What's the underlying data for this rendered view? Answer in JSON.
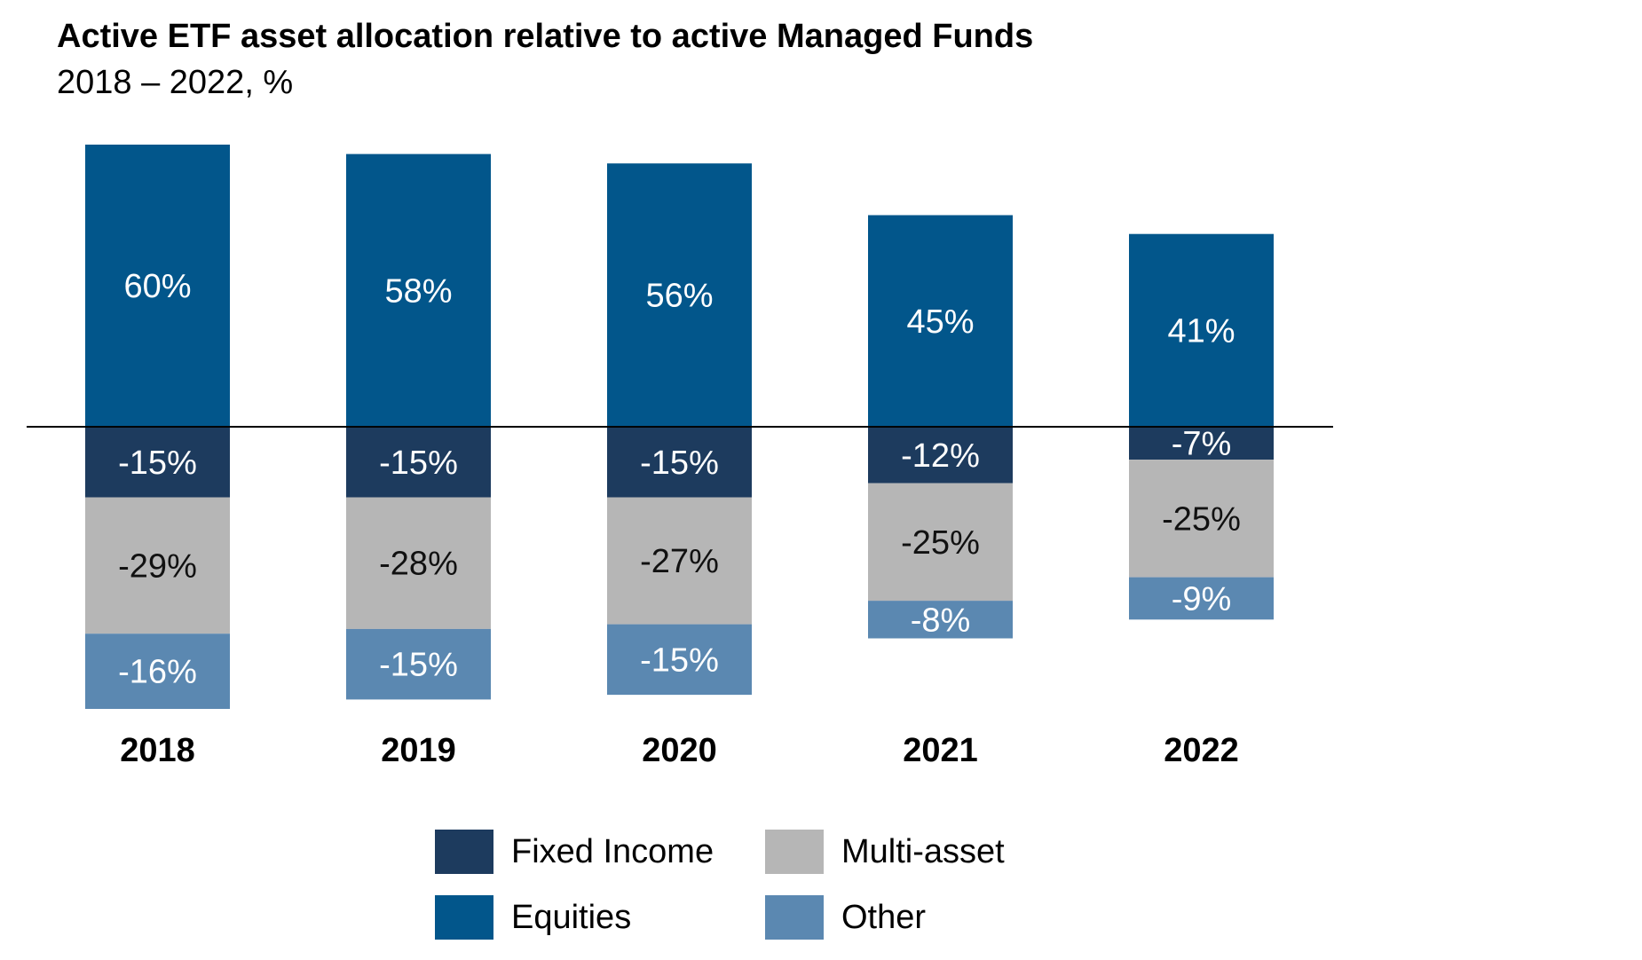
{
  "title": "Active ETF asset allocation relative to active Managed Funds",
  "subtitle": "2018 – 2022, %",
  "colors": {
    "equities": "#02568b",
    "fixed_income": "#1d3b5e",
    "multi_asset": "#b6b6b6",
    "other": "#5b88b1",
    "zero_line": "#000000"
  },
  "legend": [
    {
      "key": "fixed_income",
      "label": "Fixed Income",
      "color": "#1d3b5e"
    },
    {
      "key": "multi_asset",
      "label": "Multi-asset",
      "color": "#b6b6b6"
    },
    {
      "key": "equities",
      "label": "Equities",
      "color": "#02568b"
    },
    {
      "key": "other",
      "label": "Other",
      "color": "#5b88b1"
    }
  ],
  "chart_data": {
    "type": "bar",
    "stacked": true,
    "title": "Active ETF asset allocation relative to active Managed Funds",
    "subtitle": "2018 – 2022, %",
    "categories": [
      "2018",
      "2019",
      "2020",
      "2021",
      "2022"
    ],
    "series": [
      {
        "name": "Equities",
        "key": "equities",
        "values": [
          60,
          58,
          56,
          45,
          41
        ],
        "labels": [
          "60%",
          "58%",
          "56%",
          "45%",
          "41%"
        ]
      },
      {
        "name": "Fixed Income",
        "key": "fixed_income",
        "values": [
          -15,
          -15,
          -15,
          -12,
          -7
        ],
        "labels": [
          "-15%",
          "-15%",
          "-15%",
          "-12%",
          "-7%"
        ]
      },
      {
        "name": "Multi-asset",
        "key": "multi_asset",
        "values": [
          -29,
          -28,
          -27,
          -25,
          -25
        ],
        "labels": [
          "-29%",
          "-28%",
          "-27%",
          "-25%",
          "-25%"
        ]
      },
      {
        "name": "Other",
        "key": "other",
        "values": [
          -16,
          -15,
          -15,
          -8,
          -9
        ],
        "labels": [
          "-16%",
          "-15%",
          "-15%",
          "-8%",
          "-9%"
        ]
      }
    ],
    "ylim": [
      -60,
      60
    ],
    "grid": false,
    "legend_position": "bottom"
  }
}
